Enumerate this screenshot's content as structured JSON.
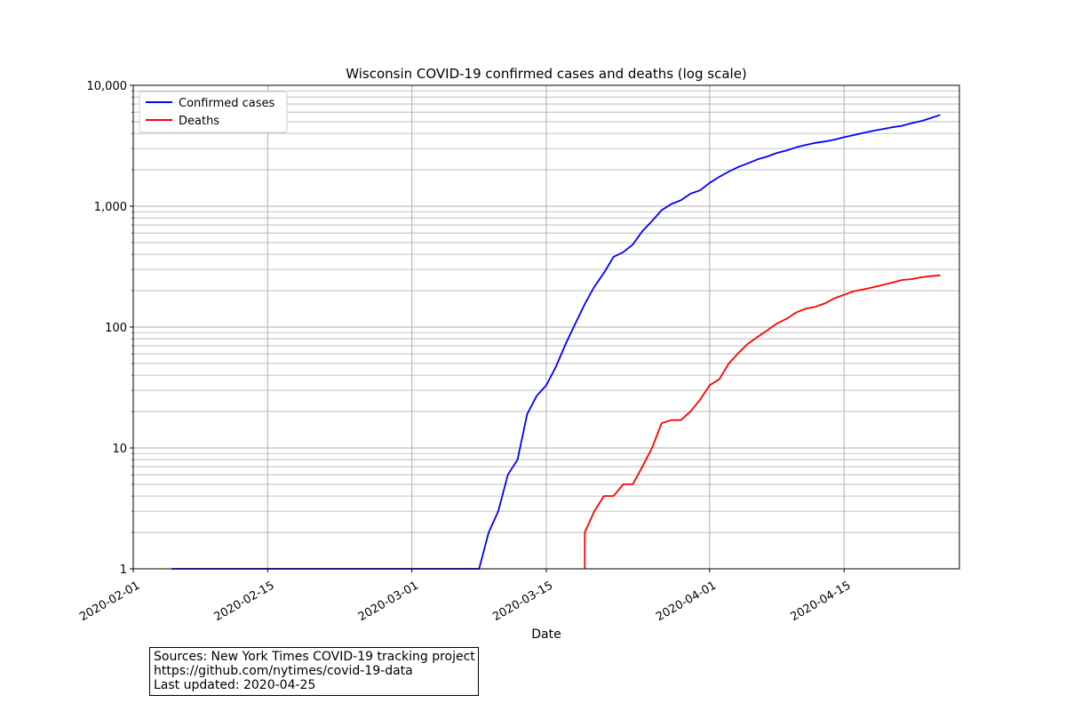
{
  "chart_data": {
    "type": "line",
    "title": "Wisconsin COVID-19 confirmed cases and deaths (log scale)",
    "xlabel": "Date",
    "ylabel": "",
    "yscale": "log",
    "xlim": [
      "2020-02-01",
      "2020-04-27"
    ],
    "ylim": [
      1,
      10000
    ],
    "grid": true,
    "legend_position": "top-left",
    "x_ticks": [
      "2020-02-01",
      "2020-02-15",
      "2020-03-01",
      "2020-03-15",
      "2020-04-01",
      "2020-04-15"
    ],
    "y_ticks": [
      1,
      10,
      100,
      1000,
      10000
    ],
    "y_tick_labels": [
      "1",
      "10",
      "100",
      "1,000",
      "10,000"
    ],
    "series": [
      {
        "name": "Confirmed cases",
        "color": "#0000ff",
        "points": [
          [
            "2020-02-05",
            1
          ],
          [
            "2020-03-08",
            1
          ],
          [
            "2020-03-09",
            2
          ],
          [
            "2020-03-10",
            3
          ],
          [
            "2020-03-11",
            6
          ],
          [
            "2020-03-12",
            8
          ],
          [
            "2020-03-13",
            19
          ],
          [
            "2020-03-14",
            27
          ],
          [
            "2020-03-15",
            33
          ],
          [
            "2020-03-16",
            47
          ],
          [
            "2020-03-17",
            72
          ],
          [
            "2020-03-18",
            106
          ],
          [
            "2020-03-19",
            155
          ],
          [
            "2020-03-20",
            216
          ],
          [
            "2020-03-21",
            281
          ],
          [
            "2020-03-22",
            381
          ],
          [
            "2020-03-23",
            416
          ],
          [
            "2020-03-24",
            481
          ],
          [
            "2020-03-25",
            621
          ],
          [
            "2020-03-26",
            754
          ],
          [
            "2020-03-27",
            927
          ],
          [
            "2020-03-28",
            1041
          ],
          [
            "2020-03-29",
            1118
          ],
          [
            "2020-03-30",
            1267
          ],
          [
            "2020-03-31",
            1351
          ],
          [
            "2020-04-01",
            1557
          ],
          [
            "2020-04-02",
            1748
          ],
          [
            "2020-04-03",
            1935
          ],
          [
            "2020-04-04",
            2112
          ],
          [
            "2020-04-05",
            2267
          ],
          [
            "2020-04-06",
            2440
          ],
          [
            "2020-04-07",
            2578
          ],
          [
            "2020-04-08",
            2756
          ],
          [
            "2020-04-09",
            2885
          ],
          [
            "2020-04-10",
            3068
          ],
          [
            "2020-04-11",
            3213
          ],
          [
            "2020-04-12",
            3341
          ],
          [
            "2020-04-13",
            3428
          ],
          [
            "2020-04-14",
            3555
          ],
          [
            "2020-04-15",
            3721
          ],
          [
            "2020-04-16",
            3875
          ],
          [
            "2020-04-17",
            4045
          ],
          [
            "2020-04-18",
            4199
          ],
          [
            "2020-04-19",
            4346
          ],
          [
            "2020-04-20",
            4499
          ],
          [
            "2020-04-21",
            4620
          ],
          [
            "2020-04-22",
            4845
          ],
          [
            "2020-04-23",
            5052
          ],
          [
            "2020-04-24",
            5356
          ],
          [
            "2020-04-25",
            5687
          ]
        ]
      },
      {
        "name": "Deaths",
        "color": "#ff0000",
        "points": [
          [
            "2020-03-19",
            1
          ],
          [
            "2020-03-19",
            2
          ],
          [
            "2020-03-20",
            3
          ],
          [
            "2020-03-21",
            4
          ],
          [
            "2020-03-22",
            4
          ],
          [
            "2020-03-23",
            5
          ],
          [
            "2020-03-24",
            5
          ],
          [
            "2020-03-25",
            7
          ],
          [
            "2020-03-26",
            10
          ],
          [
            "2020-03-27",
            16
          ],
          [
            "2020-03-28",
            17
          ],
          [
            "2020-03-29",
            17
          ],
          [
            "2020-03-30",
            20
          ],
          [
            "2020-03-31",
            25
          ],
          [
            "2020-04-01",
            33
          ],
          [
            "2020-04-02",
            37
          ],
          [
            "2020-04-03",
            50
          ],
          [
            "2020-04-04",
            61
          ],
          [
            "2020-04-05",
            73
          ],
          [
            "2020-04-06",
            83
          ],
          [
            "2020-04-07",
            94
          ],
          [
            "2020-04-08",
            107
          ],
          [
            "2020-04-09",
            117
          ],
          [
            "2020-04-10",
            132
          ],
          [
            "2020-04-11",
            142
          ],
          [
            "2020-04-12",
            147
          ],
          [
            "2020-04-13",
            157
          ],
          [
            "2020-04-14",
            173
          ],
          [
            "2020-04-15",
            185
          ],
          [
            "2020-04-16",
            198
          ],
          [
            "2020-04-17",
            205
          ],
          [
            "2020-04-18",
            213
          ],
          [
            "2020-04-19",
            223
          ],
          [
            "2020-04-20",
            233
          ],
          [
            "2020-04-21",
            245
          ],
          [
            "2020-04-22",
            249
          ],
          [
            "2020-04-23",
            258
          ],
          [
            "2020-04-24",
            264
          ],
          [
            "2020-04-25",
            268
          ]
        ]
      }
    ]
  },
  "source_box": {
    "line1": "Sources: New York Times COVID-19 tracking project",
    "line2": "https://github.com/nytimes/covid-19-data",
    "line3": "Last updated: 2020-04-25"
  }
}
